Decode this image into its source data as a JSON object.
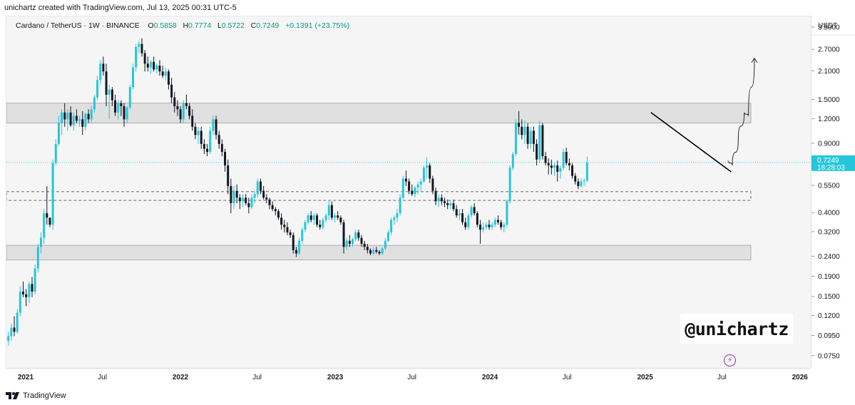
{
  "header": {
    "credit": "unichartz created with TradingView.com, Jul 13, 2025 00:31 UTC-5"
  },
  "legend": {
    "symbol": "Cardano / TetherUS · 1W · BINANCE",
    "open_label": "O",
    "open": "0.5858",
    "high_label": "H",
    "high": "0.7774",
    "low_label": "L",
    "low": "0.5722",
    "close_label": "C",
    "close": "0.7249",
    "change": "+0.1391 (+23.75%)"
  },
  "price_axis": {
    "currency": "USDT",
    "current_price": "0.7249",
    "countdown": "18:28:03"
  },
  "watermark": "@unichartz",
  "footer": {
    "brand": "TradingView"
  },
  "colors": {
    "up": "#26c6da",
    "down": "#131722",
    "plot_bg": "#f5f5f5",
    "zone_fill": "#e0e0e0",
    "price_line": "#26c6da",
    "accent_bolt": "#9c27b0"
  },
  "chart_data": {
    "type": "candlestick",
    "scale": "log",
    "ylim": [
      0.065,
      4.0
    ],
    "y_ticks": [
      3.5,
      2.7,
      2.1,
      1.5,
      1.2,
      0.9,
      0.55,
      0.4,
      0.32,
      0.24,
      0.19,
      0.15,
      0.12,
      0.095,
      0.075
    ],
    "y_tick_labels": [
      "3.5000",
      "2.7000",
      "2.1000",
      "1.5000",
      "1.2000",
      "0.9000",
      "0.5500",
      "0.4000",
      "0.3200",
      "0.2400",
      "0.1900",
      "0.1500",
      "0.1200",
      "0.0950",
      "0.0750"
    ],
    "x_range": [
      "2020-11-15",
      "2026-01-25"
    ],
    "x_ticks": [
      {
        "date": "2021-01-01",
        "label": "2021",
        "bold": true
      },
      {
        "date": "2021-07-01",
        "label": "Jul",
        "bold": false
      },
      {
        "date": "2022-01-01",
        "label": "2022",
        "bold": true
      },
      {
        "date": "2022-07-01",
        "label": "Jul",
        "bold": false
      },
      {
        "date": "2023-01-01",
        "label": "2023",
        "bold": true
      },
      {
        "date": "2023-07-01",
        "label": "Jul",
        "bold": false
      },
      {
        "date": "2024-01-01",
        "label": "2024",
        "bold": true
      },
      {
        "date": "2024-07-01",
        "label": "Jul",
        "bold": false
      },
      {
        "date": "2025-01-01",
        "label": "2025",
        "bold": true
      },
      {
        "date": "2025-07-01",
        "label": "Jul",
        "bold": false
      },
      {
        "date": "2026-01-01",
        "label": "2026",
        "bold": true
      }
    ],
    "first_candle_date": "2020-11-16",
    "candle_interval_days": 7,
    "last_close": 0.7249,
    "candles": [
      [
        0.09,
        0.1,
        0.085,
        0.095
      ],
      [
        0.095,
        0.11,
        0.09,
        0.105
      ],
      [
        0.105,
        0.12,
        0.095,
        0.1
      ],
      [
        0.1,
        0.13,
        0.098,
        0.125
      ],
      [
        0.125,
        0.17,
        0.12,
        0.16
      ],
      [
        0.16,
        0.18,
        0.15,
        0.155
      ],
      [
        0.155,
        0.165,
        0.135,
        0.15
      ],
      [
        0.15,
        0.18,
        0.14,
        0.175
      ],
      [
        0.175,
        0.19,
        0.15,
        0.16
      ],
      [
        0.16,
        0.22,
        0.155,
        0.21
      ],
      [
        0.21,
        0.28,
        0.2,
        0.27
      ],
      [
        0.27,
        0.32,
        0.25,
        0.3
      ],
      [
        0.3,
        0.42,
        0.28,
        0.4
      ],
      [
        0.4,
        0.55,
        0.35,
        0.38
      ],
      [
        0.38,
        0.36,
        0.34,
        0.35
      ],
      [
        0.35,
        0.75,
        0.33,
        0.72
      ],
      [
        0.72,
        0.95,
        0.7,
        0.9
      ],
      [
        0.9,
        1.25,
        0.88,
        1.15
      ],
      [
        1.15,
        1.35,
        1.0,
        1.3
      ],
      [
        1.3,
        1.45,
        1.1,
        1.2
      ],
      [
        1.2,
        1.35,
        1.05,
        1.3
      ],
      [
        1.3,
        1.4,
        1.1,
        1.12
      ],
      [
        1.12,
        1.3,
        1.05,
        1.25
      ],
      [
        1.25,
        1.35,
        1.15,
        1.18
      ],
      [
        1.18,
        1.25,
        1.1,
        1.2
      ],
      [
        1.2,
        1.32,
        1.0,
        1.1
      ],
      [
        1.1,
        1.3,
        1.05,
        1.28
      ],
      [
        1.28,
        1.35,
        1.15,
        1.2
      ],
      [
        1.2,
        1.4,
        1.15,
        1.35
      ],
      [
        1.35,
        1.6,
        1.3,
        1.55
      ],
      [
        1.55,
        2.0,
        1.5,
        1.9
      ],
      [
        1.9,
        2.4,
        1.8,
        2.3
      ],
      [
        2.3,
        2.5,
        2.0,
        2.1
      ],
      [
        2.1,
        2.3,
        1.4,
        1.6
      ],
      [
        1.6,
        1.8,
        1.2,
        1.7
      ],
      [
        1.7,
        1.75,
        1.4,
        1.5
      ],
      [
        1.5,
        1.6,
        1.25,
        1.3
      ],
      [
        1.3,
        1.5,
        1.2,
        1.45
      ],
      [
        1.45,
        1.5,
        1.25,
        1.4
      ],
      [
        1.4,
        1.45,
        1.1,
        1.2
      ],
      [
        1.2,
        1.4,
        1.15,
        1.38
      ],
      [
        1.38,
        1.8,
        1.35,
        1.75
      ],
      [
        1.75,
        2.3,
        1.7,
        2.2
      ],
      [
        2.2,
        2.9,
        2.1,
        2.8
      ],
      [
        2.8,
        3.0,
        2.6,
        2.9
      ],
      [
        2.9,
        3.1,
        2.5,
        2.6
      ],
      [
        2.6,
        2.7,
        2.1,
        2.3
      ],
      [
        2.3,
        2.5,
        2.1,
        2.2
      ],
      [
        2.2,
        2.4,
        2.05,
        2.35
      ],
      [
        2.35,
        2.5,
        2.1,
        2.15
      ],
      [
        2.15,
        2.3,
        2.05,
        2.25
      ],
      [
        2.25,
        2.4,
        2.0,
        2.1
      ],
      [
        2.1,
        2.25,
        1.95,
        2.0
      ],
      [
        2.0,
        2.2,
        1.9,
        2.1
      ],
      [
        2.1,
        2.15,
        1.7,
        1.8
      ],
      [
        1.8,
        1.95,
        1.45,
        1.55
      ],
      [
        1.55,
        1.65,
        1.3,
        1.4
      ],
      [
        1.4,
        1.5,
        1.25,
        1.35
      ],
      [
        1.35,
        1.4,
        1.15,
        1.2
      ],
      [
        1.2,
        1.5,
        1.15,
        1.45
      ],
      [
        1.45,
        1.6,
        1.35,
        1.4
      ],
      [
        1.4,
        1.45,
        1.2,
        1.25
      ],
      [
        1.25,
        1.35,
        1.05,
        1.1
      ],
      [
        1.1,
        1.15,
        0.95,
        1.0
      ],
      [
        1.0,
        1.1,
        0.9,
        1.05
      ],
      [
        1.05,
        1.1,
        0.85,
        0.9
      ],
      [
        0.9,
        0.95,
        0.8,
        0.85
      ],
      [
        0.85,
        0.9,
        0.78,
        0.82
      ],
      [
        0.82,
        1.1,
        0.8,
        1.05
      ],
      [
        1.05,
        1.25,
        1.0,
        1.2
      ],
      [
        1.2,
        1.25,
        0.95,
        1.0
      ],
      [
        1.0,
        1.05,
        0.85,
        0.9
      ],
      [
        0.9,
        0.95,
        0.78,
        0.82
      ],
      [
        0.82,
        0.85,
        0.65,
        0.7
      ],
      [
        0.7,
        0.75,
        0.5,
        0.55
      ],
      [
        0.55,
        0.6,
        0.4,
        0.45
      ],
      [
        0.45,
        0.55,
        0.42,
        0.52
      ],
      [
        0.52,
        0.56,
        0.45,
        0.48
      ],
      [
        0.48,
        0.5,
        0.42,
        0.46
      ],
      [
        0.46,
        0.5,
        0.43,
        0.48
      ],
      [
        0.48,
        0.5,
        0.44,
        0.45
      ],
      [
        0.45,
        0.48,
        0.4,
        0.43
      ],
      [
        0.43,
        0.5,
        0.42,
        0.48
      ],
      [
        0.48,
        0.52,
        0.45,
        0.5
      ],
      [
        0.5,
        0.6,
        0.48,
        0.58
      ],
      [
        0.58,
        0.6,
        0.5,
        0.52
      ],
      [
        0.52,
        0.55,
        0.47,
        0.48
      ],
      [
        0.48,
        0.5,
        0.45,
        0.47
      ],
      [
        0.47,
        0.48,
        0.42,
        0.44
      ],
      [
        0.44,
        0.46,
        0.41,
        0.42
      ],
      [
        0.42,
        0.43,
        0.39,
        0.41
      ],
      [
        0.41,
        0.42,
        0.37,
        0.38
      ],
      [
        0.38,
        0.4,
        0.33,
        0.35
      ],
      [
        0.35,
        0.37,
        0.32,
        0.34
      ],
      [
        0.34,
        0.36,
        0.31,
        0.32
      ],
      [
        0.32,
        0.33,
        0.3,
        0.31
      ],
      [
        0.31,
        0.32,
        0.25,
        0.26
      ],
      [
        0.26,
        0.27,
        0.24,
        0.25
      ],
      [
        0.25,
        0.3,
        0.245,
        0.29
      ],
      [
        0.29,
        0.34,
        0.28,
        0.33
      ],
      [
        0.33,
        0.37,
        0.32,
        0.36
      ],
      [
        0.36,
        0.4,
        0.35,
        0.39
      ],
      [
        0.39,
        0.41,
        0.36,
        0.37
      ],
      [
        0.37,
        0.4,
        0.35,
        0.39
      ],
      [
        0.39,
        0.4,
        0.34,
        0.35
      ],
      [
        0.35,
        0.37,
        0.33,
        0.34
      ],
      [
        0.34,
        0.38,
        0.33,
        0.37
      ],
      [
        0.37,
        0.4,
        0.36,
        0.39
      ],
      [
        0.39,
        0.46,
        0.37,
        0.44
      ],
      [
        0.44,
        0.46,
        0.37,
        0.38
      ],
      [
        0.38,
        0.4,
        0.36,
        0.39
      ],
      [
        0.39,
        0.41,
        0.37,
        0.38
      ],
      [
        0.38,
        0.39,
        0.35,
        0.36
      ],
      [
        0.36,
        0.37,
        0.25,
        0.27
      ],
      [
        0.27,
        0.3,
        0.26,
        0.29
      ],
      [
        0.29,
        0.31,
        0.27,
        0.28
      ],
      [
        0.28,
        0.3,
        0.27,
        0.295
      ],
      [
        0.295,
        0.33,
        0.29,
        0.32
      ],
      [
        0.32,
        0.33,
        0.29,
        0.3
      ],
      [
        0.3,
        0.31,
        0.27,
        0.28
      ],
      [
        0.28,
        0.29,
        0.26,
        0.27
      ],
      [
        0.27,
        0.28,
        0.25,
        0.26
      ],
      [
        0.26,
        0.265,
        0.245,
        0.25
      ],
      [
        0.25,
        0.27,
        0.245,
        0.26
      ],
      [
        0.26,
        0.27,
        0.25,
        0.255
      ],
      [
        0.255,
        0.26,
        0.245,
        0.25
      ],
      [
        0.25,
        0.27,
        0.245,
        0.265
      ],
      [
        0.265,
        0.3,
        0.26,
        0.29
      ],
      [
        0.29,
        0.33,
        0.285,
        0.32
      ],
      [
        0.32,
        0.38,
        0.31,
        0.37
      ],
      [
        0.37,
        0.39,
        0.35,
        0.38
      ],
      [
        0.38,
        0.42,
        0.36,
        0.4
      ],
      [
        0.4,
        0.5,
        0.39,
        0.48
      ],
      [
        0.48,
        0.62,
        0.47,
        0.6
      ],
      [
        0.6,
        0.66,
        0.55,
        0.58
      ],
      [
        0.58,
        0.6,
        0.5,
        0.52
      ],
      [
        0.52,
        0.56,
        0.49,
        0.5
      ],
      [
        0.5,
        0.55,
        0.48,
        0.54
      ],
      [
        0.54,
        0.58,
        0.5,
        0.56
      ],
      [
        0.56,
        0.6,
        0.52,
        0.58
      ],
      [
        0.58,
        0.7,
        0.57,
        0.68
      ],
      [
        0.68,
        0.77,
        0.6,
        0.7
      ],
      [
        0.7,
        0.72,
        0.57,
        0.6
      ],
      [
        0.6,
        0.62,
        0.5,
        0.52
      ],
      [
        0.52,
        0.54,
        0.44,
        0.46
      ],
      [
        0.46,
        0.5,
        0.43,
        0.48
      ],
      [
        0.48,
        0.5,
        0.44,
        0.46
      ],
      [
        0.46,
        0.48,
        0.43,
        0.45
      ],
      [
        0.45,
        0.47,
        0.42,
        0.44
      ],
      [
        0.44,
        0.46,
        0.42,
        0.45
      ],
      [
        0.45,
        0.47,
        0.41,
        0.42
      ],
      [
        0.42,
        0.44,
        0.38,
        0.39
      ],
      [
        0.39,
        0.42,
        0.37,
        0.4
      ],
      [
        0.4,
        0.42,
        0.35,
        0.36
      ],
      [
        0.36,
        0.38,
        0.33,
        0.34
      ],
      [
        0.34,
        0.4,
        0.33,
        0.39
      ],
      [
        0.39,
        0.44,
        0.38,
        0.43
      ],
      [
        0.43,
        0.45,
        0.39,
        0.4
      ],
      [
        0.4,
        0.41,
        0.34,
        0.35
      ],
      [
        0.35,
        0.37,
        0.28,
        0.33
      ],
      [
        0.33,
        0.36,
        0.32,
        0.34
      ],
      [
        0.34,
        0.36,
        0.33,
        0.35
      ],
      [
        0.35,
        0.37,
        0.33,
        0.34
      ],
      [
        0.34,
        0.36,
        0.33,
        0.35
      ],
      [
        0.35,
        0.38,
        0.34,
        0.37
      ],
      [
        0.37,
        0.39,
        0.35,
        0.36
      ],
      [
        0.36,
        0.37,
        0.33,
        0.34
      ],
      [
        0.34,
        0.36,
        0.32,
        0.35
      ],
      [
        0.35,
        0.47,
        0.34,
        0.46
      ],
      [
        0.46,
        0.7,
        0.45,
        0.68
      ],
      [
        0.68,
        0.82,
        0.66,
        0.8
      ],
      [
        0.8,
        1.2,
        0.78,
        1.15
      ],
      [
        1.15,
        1.32,
        1.0,
        1.1
      ],
      [
        1.1,
        1.2,
        0.95,
        1.0
      ],
      [
        1.0,
        1.18,
        0.9,
        1.1
      ],
      [
        1.1,
        1.15,
        0.85,
        0.9
      ],
      [
        0.9,
        1.1,
        0.85,
        1.05
      ],
      [
        1.05,
        1.1,
        0.82,
        0.9
      ],
      [
        0.9,
        0.95,
        0.7,
        0.75
      ],
      [
        0.75,
        1.18,
        0.72,
        1.12
      ],
      [
        1.12,
        1.15,
        0.75,
        0.78
      ],
      [
        0.78,
        0.82,
        0.7,
        0.72
      ],
      [
        0.72,
        0.76,
        0.63,
        0.7
      ],
      [
        0.7,
        0.75,
        0.63,
        0.68
      ],
      [
        0.68,
        0.72,
        0.62,
        0.7
      ],
      [
        0.7,
        0.74,
        0.58,
        0.65
      ],
      [
        0.65,
        0.7,
        0.6,
        0.68
      ],
      [
        0.68,
        0.85,
        0.66,
        0.82
      ],
      [
        0.82,
        0.86,
        0.7,
        0.72
      ],
      [
        0.72,
        0.76,
        0.66,
        0.7
      ],
      [
        0.7,
        0.72,
        0.6,
        0.62
      ],
      [
        0.62,
        0.64,
        0.56,
        0.58
      ],
      [
        0.58,
        0.6,
        0.53,
        0.55
      ],
      [
        0.55,
        0.6,
        0.54,
        0.58
      ],
      [
        0.58,
        0.6,
        0.55,
        0.5858
      ],
      [
        0.5858,
        0.7774,
        0.5722,
        0.7249
      ]
    ],
    "zones": [
      {
        "top": 1.45,
        "bottom": 1.15,
        "style": "filled"
      },
      {
        "top": 0.515,
        "bottom": 0.465,
        "style": "dashed"
      },
      {
        "top": 0.275,
        "bottom": 0.232,
        "style": "filled"
      }
    ],
    "trendline": [
      {
        "date": "2025-01-13",
        "value": 1.3
      },
      {
        "date": "2025-07-21",
        "value": 0.65
      }
    ],
    "projection": [
      {
        "date": "2025-07-14",
        "value": 0.74
      },
      {
        "date": "2025-07-24",
        "value": 0.7
      },
      {
        "date": "2025-08-07",
        "value": 0.95
      },
      {
        "date": "2025-08-21",
        "value": 1.3
      },
      {
        "date": "2025-08-31",
        "value": 1.25
      },
      {
        "date": "2025-09-14",
        "value": 2.45
      }
    ]
  }
}
